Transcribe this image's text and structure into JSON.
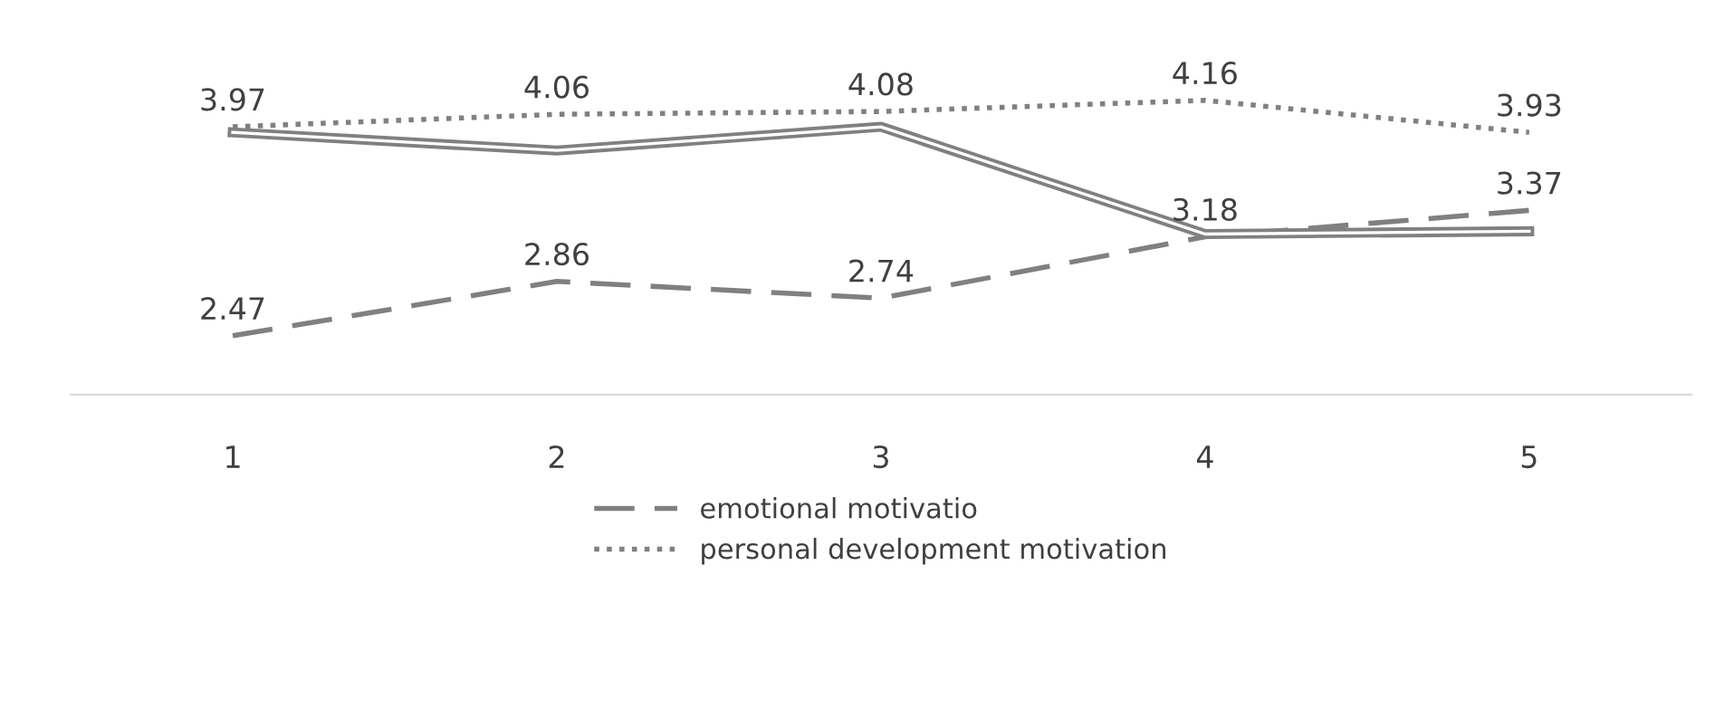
{
  "chart_data": {
    "type": "line",
    "categories": [
      "1",
      "2",
      "3",
      "4",
      "5"
    ],
    "tick_labels": "x",
    "grid": false,
    "legend": "bottom",
    "marker": "none",
    "series": [
      {
        "name": "emotional motivatio",
        "color": "#808080",
        "line_style": "dashed",
        "values": [
          2.47,
          2.86,
          2.74,
          3.18,
          3.37
        ],
        "value_labels": [
          "2.47",
          "2.86",
          "2.74",
          "3.18",
          "3.37"
        ]
      },
      {
        "name": "personal development motivation",
        "color": "#808080",
        "line_style": "dotted",
        "values": [
          3.97,
          4.06,
          4.08,
          4.16,
          3.93
        ],
        "value_labels": [
          "3.97",
          "4.06",
          "4.08",
          "4.16",
          "3.93"
        ]
      },
      {
        "color": "#808080",
        "line_style": "solid",
        "values": [
          3.93,
          3.8,
          3.97,
          3.2,
          3.22
        ]
      }
    ]
  }
}
